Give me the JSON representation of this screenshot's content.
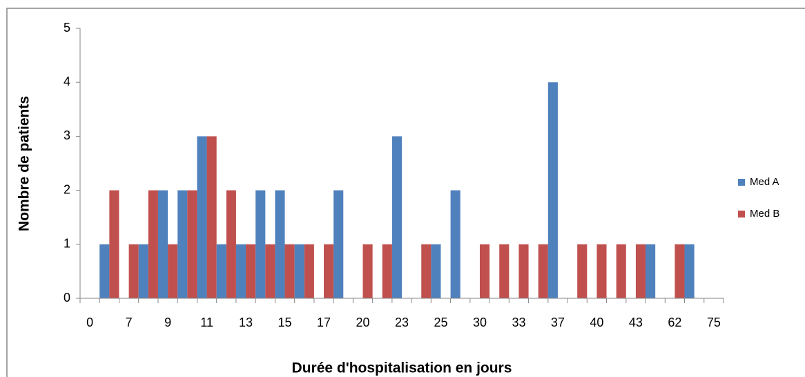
{
  "chart_data": {
    "type": "bar",
    "x_label": "Durée d'hospitalisation en jours",
    "y_label": "Nombre de patients",
    "categories": [
      "0",
      null,
      "7",
      null,
      "9",
      null,
      "11",
      null,
      "13",
      null,
      "15",
      null,
      "17",
      null,
      "20",
      null,
      "23",
      null,
      "25",
      null,
      "30",
      null,
      "33",
      null,
      "37",
      null,
      "40",
      null,
      "43",
      null,
      "62",
      null,
      "75"
    ],
    "series": [
      {
        "name": "Med A",
        "color": "#4f81bd",
        "values": [
          0,
          1,
          0,
          1,
          2,
          2,
          3,
          1,
          1,
          2,
          2,
          1,
          0,
          2,
          0,
          0,
          3,
          0,
          1,
          2,
          0,
          0,
          0,
          0,
          4,
          0,
          0,
          0,
          0,
          1,
          0,
          1,
          0
        ]
      },
      {
        "name": "Med B",
        "color": "#c0504d",
        "values": [
          0,
          2,
          1,
          2,
          1,
          2,
          3,
          2,
          1,
          1,
          1,
          1,
          1,
          0,
          1,
          1,
          0,
          1,
          0,
          0,
          1,
          1,
          1,
          1,
          0,
          1,
          1,
          1,
          1,
          0,
          1,
          0,
          0
        ]
      }
    ],
    "ylim": [
      0,
      5
    ],
    "yticks": [
      0,
      1,
      2,
      3,
      4,
      5
    ],
    "grid": false,
    "legend": "right"
  }
}
